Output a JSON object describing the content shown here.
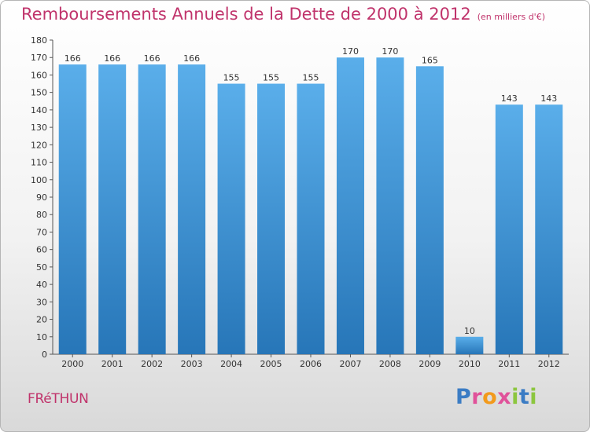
{
  "title": {
    "main": "Remboursements Annuels de la Dette de 2000 à 2012",
    "unit": "(en milliers d'€)"
  },
  "city": "FRéTHUN",
  "brand": {
    "letters": [
      {
        "ch": "P",
        "color": "#3b7cc4"
      },
      {
        "ch": "r",
        "color": "#e0529a"
      },
      {
        "ch": "o",
        "color": "#f29a1c"
      },
      {
        "ch": "x",
        "color": "#e0529a"
      },
      {
        "ch": "i",
        "color": "#8cc63f"
      },
      {
        "ch": "t",
        "color": "#3b7cc4"
      },
      {
        "ch": "i",
        "color": "#8cc63f"
      }
    ]
  },
  "colors": {
    "bar_light": "#5aaeea",
    "bar_dark": "#2776b8",
    "title": "#c0336b"
  },
  "chart_data": {
    "type": "bar",
    "categories": [
      "2000",
      "2001",
      "2002",
      "2003",
      "2004",
      "2005",
      "2006",
      "2007",
      "2008",
      "2009",
      "2010",
      "2011",
      "2012"
    ],
    "values": [
      166,
      166,
      166,
      166,
      155,
      155,
      155,
      170,
      170,
      165,
      10,
      143,
      143
    ],
    "ylim": [
      0,
      180
    ],
    "yticks": [
      0,
      10,
      20,
      30,
      40,
      50,
      60,
      70,
      80,
      90,
      100,
      110,
      120,
      130,
      140,
      150,
      160,
      170,
      180
    ],
    "grid": false,
    "legend": "none"
  }
}
